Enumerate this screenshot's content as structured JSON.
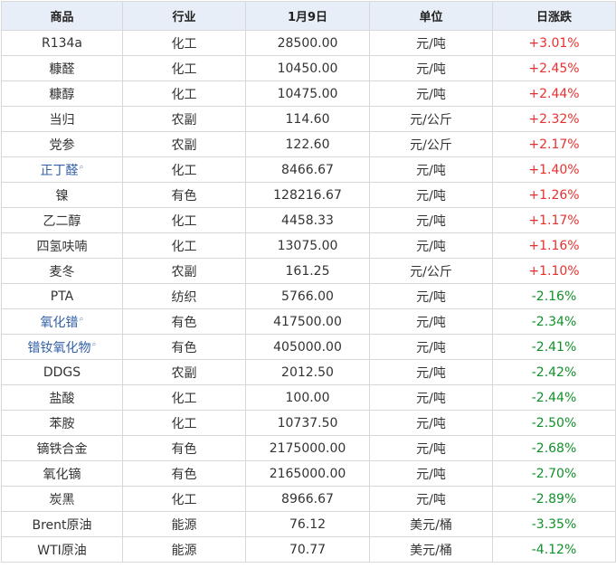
{
  "header": {
    "product": "商品",
    "industry": "行业",
    "date": "1月9日",
    "unit": "单位",
    "change": "日涨跌"
  },
  "colors": {
    "up": "#e8312f",
    "down": "#11912b",
    "link": "#335fa8",
    "header_bg": "#e8eef7"
  },
  "rows": [
    {
      "product": "R134a",
      "industry": "化工",
      "price": "28500.00",
      "unit": "元/吨",
      "change": "+3.01%",
      "dir": "up",
      "link": false
    },
    {
      "product": "糠醛",
      "industry": "化工",
      "price": "10450.00",
      "unit": "元/吨",
      "change": "+2.45%",
      "dir": "up",
      "link": false
    },
    {
      "product": "糠醇",
      "industry": "化工",
      "price": "10475.00",
      "unit": "元/吨",
      "change": "+2.44%",
      "dir": "up",
      "link": false
    },
    {
      "product": "当归",
      "industry": "农副",
      "price": "114.60",
      "unit": "元/公斤",
      "change": "+2.32%",
      "dir": "up",
      "link": false
    },
    {
      "product": "党参",
      "industry": "农副",
      "price": "122.60",
      "unit": "元/公斤",
      "change": "+2.17%",
      "dir": "up",
      "link": false
    },
    {
      "product": "正丁醛",
      "industry": "化工",
      "price": "8466.67",
      "unit": "元/吨",
      "change": "+1.40%",
      "dir": "up",
      "link": true
    },
    {
      "product": "镍",
      "industry": "有色",
      "price": "128216.67",
      "unit": "元/吨",
      "change": "+1.26%",
      "dir": "up",
      "link": false
    },
    {
      "product": "乙二醇",
      "industry": "化工",
      "price": "4458.33",
      "unit": "元/吨",
      "change": "+1.17%",
      "dir": "up",
      "link": false
    },
    {
      "product": "四氢呋喃",
      "industry": "化工",
      "price": "13075.00",
      "unit": "元/吨",
      "change": "+1.16%",
      "dir": "up",
      "link": false
    },
    {
      "product": "麦冬",
      "industry": "农副",
      "price": "161.25",
      "unit": "元/公斤",
      "change": "+1.10%",
      "dir": "up",
      "link": false
    },
    {
      "product": "PTA",
      "industry": "纺织",
      "price": "5766.00",
      "unit": "元/吨",
      "change": "-2.16%",
      "dir": "down",
      "link": false
    },
    {
      "product": "氧化镨",
      "industry": "有色",
      "price": "417500.00",
      "unit": "元/吨",
      "change": "-2.34%",
      "dir": "down",
      "link": true
    },
    {
      "product": "镨钕氧化物",
      "industry": "有色",
      "price": "405000.00",
      "unit": "元/吨",
      "change": "-2.41%",
      "dir": "down",
      "link": true
    },
    {
      "product": "DDGS",
      "industry": "农副",
      "price": "2012.50",
      "unit": "元/吨",
      "change": "-2.42%",
      "dir": "down",
      "link": false
    },
    {
      "product": "盐酸",
      "industry": "化工",
      "price": "100.00",
      "unit": "元/吨",
      "change": "-2.44%",
      "dir": "down",
      "link": false
    },
    {
      "product": "苯胺",
      "industry": "化工",
      "price": "10737.50",
      "unit": "元/吨",
      "change": "-2.50%",
      "dir": "down",
      "link": false
    },
    {
      "product": "镝铁合金",
      "industry": "有色",
      "price": "2175000.00",
      "unit": "元/吨",
      "change": "-2.68%",
      "dir": "down",
      "link": false
    },
    {
      "product": "氧化镝",
      "industry": "有色",
      "price": "2165000.00",
      "unit": "元/吨",
      "change": "-2.70%",
      "dir": "down",
      "link": false
    },
    {
      "product": "炭黑",
      "industry": "化工",
      "price": "8966.67",
      "unit": "元/吨",
      "change": "-2.89%",
      "dir": "down",
      "link": false
    },
    {
      "product": "Brent原油",
      "industry": "能源",
      "price": "76.12",
      "unit": "美元/桶",
      "change": "-3.35%",
      "dir": "down",
      "link": false
    },
    {
      "product": "WTI原油",
      "industry": "能源",
      "price": "70.77",
      "unit": "美元/桶",
      "change": "-4.12%",
      "dir": "down",
      "link": false
    }
  ]
}
